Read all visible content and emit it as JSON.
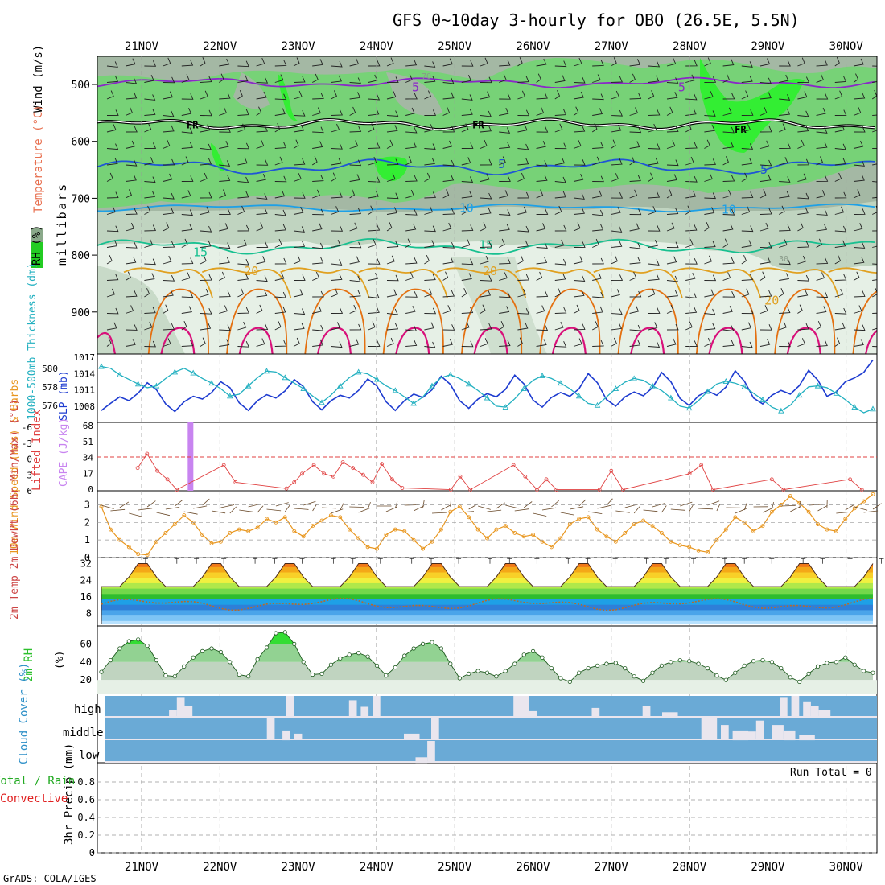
{
  "header": {
    "title": "GFS 0~10day 3-hourly for OBO (26.5E, 5.5N)",
    "credit": "GrADS: COLA/IGES"
  },
  "dates": [
    "21NOV",
    "22NOV",
    "23NOV",
    "24NOV",
    "25NOV",
    "26NOV",
    "27NOV",
    "28NOV",
    "29NOV",
    "30NOV"
  ],
  "colors": {
    "rh_light": "#e6f0e6",
    "rh_mid": "#c0d4c0",
    "rh_dark": "#a4b8a4",
    "rh_green": "#77d277",
    "rh_bright": "#33ee33",
    "temp_neg": "#8a28c8",
    "freezing": "#000000",
    "temp_5": "#1f55d6",
    "temp_10": "#1ea0e6",
    "temp_15": "#18c090",
    "temp_20": "#e0a020",
    "temp_25": "#e47010",
    "temp_30": "#d8107a",
    "slp": "#1e3cd0",
    "thickness": "#22b0c0",
    "cape": "#c884f0",
    "lifted": "#e04040",
    "wind": "#e8961e",
    "barb": "#6a4a2a",
    "rh2m": "#2cc02c",
    "cloud_bg": "#6aaad6",
    "cloud_bar": "#eae6ee",
    "precip_total": "#22aa22",
    "precip_conv": "#e02020"
  },
  "chart_data": [
    {
      "type": "heatmap",
      "title": "GFS 0~10day 3-hourly for OBO (26.5E, 5.5N)",
      "ylabel": "millibars",
      "side_labels": {
        "wind": "Wind (m/s)",
        "temp": "Temperature (°C)",
        "rh": "RH (%)"
      },
      "ylim": [
        1000,
        450
      ],
      "y_ticks": [
        500,
        600,
        700,
        800,
        900
      ],
      "rh_legend": [
        "30",
        "70"
      ],
      "isotherm_labels": [
        {
          "text": "5",
          "x_day": 3.5,
          "p": 505
        },
        {
          "text": "5",
          "x_day": 6.9,
          "p": 505
        },
        {
          "text": "FR",
          "x_day": 0.65,
          "p": 570
        },
        {
          "text": "FR",
          "x_day": 4.3,
          "p": 570
        },
        {
          "text": "FR",
          "x_day": 7.65,
          "p": 578
        },
        {
          "text": "5",
          "x_day": 4.6,
          "p": 640
        },
        {
          "text": "5",
          "x_day": 7.95,
          "p": 650
        },
        {
          "text": "10",
          "x_day": 4.15,
          "p": 717
        },
        {
          "text": "10",
          "x_day": 7.5,
          "p": 720
        },
        {
          "text": "15",
          "x_day": 0.75,
          "p": 795
        },
        {
          "text": "15",
          "x_day": 4.4,
          "p": 782
        },
        {
          "text": "20",
          "x_day": 1.4,
          "p": 828
        },
        {
          "text": "20",
          "x_day": 4.45,
          "p": 828
        },
        {
          "text": "20",
          "x_day": 8.05,
          "p": 880
        }
      ]
    },
    {
      "type": "line",
      "ylabel_left": "1000-500mb Thickness (dm)",
      "ylabel_right": "SLP (mb)",
      "thickness_ticks": [
        "580",
        "578",
        "576"
      ],
      "slp_ticks": [
        "1017",
        "1014",
        "1011",
        "1008"
      ],
      "thickness_range": [
        574.5,
        581.2
      ],
      "slp_range": [
        1005.6,
        1017
      ],
      "series": [
        {
          "name": "SLP",
          "unit": "mb",
          "x_step_hours": 3,
          "values": [
            1007.2,
            1008.5,
            1009.7,
            1009.0,
            1010.4,
            1012.3,
            1011.0,
            1008.4,
            1007.0,
            1008.8,
            1009.8,
            1009.3,
            1010.5,
            1012.5,
            1011.4,
            1008.6,
            1007.2,
            1009.0,
            1010.1,
            1009.5,
            1010.8,
            1012.9,
            1011.6,
            1008.8,
            1007.3,
            1009.0,
            1010.0,
            1009.5,
            1010.9,
            1013.0,
            1011.7,
            1008.8,
            1007.2,
            1009.0,
            1010.2,
            1009.6,
            1011.0,
            1013.5,
            1012.0,
            1009.0,
            1007.6,
            1009.3,
            1010.3,
            1009.7,
            1011.1,
            1013.7,
            1012.1,
            1009.1,
            1007.8,
            1009.6,
            1010.5,
            1009.8,
            1011.2,
            1014.0,
            1012.3,
            1009.2,
            1008.0,
            1009.7,
            1010.6,
            1009.9,
            1011.4,
            1014.2,
            1012.5,
            1009.4,
            1008.1,
            1009.9,
            1010.8,
            1010.0,
            1011.5,
            1014.5,
            1012.6,
            1009.5,
            1008.4,
            1010.0,
            1010.9,
            1010.2,
            1011.8,
            1014.6,
            1012.8,
            1009.8,
            1010.6,
            1012.5,
            1013.2,
            1014.2,
            1016.5
          ]
        },
        {
          "name": "Thickness",
          "unit": "dm",
          "x_step_hours": 3,
          "values": [
            580.2,
            580.0,
            579.3,
            578.8,
            578.3,
            577.9,
            578.1,
            578.9,
            579.6,
            580.0,
            579.5,
            578.9,
            578.4,
            577.8,
            577.0,
            577.2,
            578.1,
            579.0,
            579.7,
            579.6,
            579.0,
            578.4,
            577.8,
            577.0,
            576.3,
            577.1,
            578.1,
            579.0,
            579.6,
            579.4,
            578.8,
            578.1,
            577.6,
            576.9,
            576.2,
            576.9,
            578.1,
            579.0,
            579.3,
            578.9,
            578.3,
            577.6,
            576.8,
            575.9,
            575.8,
            576.7,
            577.8,
            578.7,
            579.2,
            578.9,
            578.4,
            577.8,
            577.0,
            576.2,
            576.0,
            576.9,
            577.8,
            578.5,
            578.9,
            578.7,
            578.1,
            577.6,
            576.8,
            575.9,
            575.7,
            576.5,
            577.5,
            578.3,
            578.6,
            578.4,
            578.0,
            577.3,
            576.6,
            575.8,
            575.4,
            576.0,
            577.1,
            578.0,
            578.1,
            577.9,
            577.3,
            576.6,
            575.8,
            575.2,
            575.6
          ]
        }
      ]
    },
    {
      "type": "bar",
      "ylabel_left": "Lifted Index",
      "ylabel_right": "CAPE (J/kg)",
      "li_ticks": [
        "-6",
        "-3",
        "0",
        "3",
        "6"
      ],
      "cape_ticks": [
        "68",
        "51",
        "34",
        "17",
        "0"
      ],
      "cape_bars": [
        {
          "day": 0.62,
          "value": 68
        }
      ],
      "lifted_index_points": [
        [
          0.5,
          2.0
        ],
        [
          0.62,
          -0.5
        ],
        [
          0.75,
          2.5
        ],
        [
          0.88,
          4.0
        ],
        [
          1.0,
          5.8
        ],
        [
          1.6,
          1.5
        ],
        [
          1.75,
          4.5
        ],
        [
          2.4,
          5.6
        ],
        [
          2.5,
          4.5
        ],
        [
          2.6,
          3.0
        ],
        [
          2.75,
          1.5
        ],
        [
          2.88,
          3.0
        ],
        [
          3.0,
          3.5
        ],
        [
          3.12,
          1.0
        ],
        [
          3.25,
          2.0
        ],
        [
          3.38,
          3.2
        ],
        [
          3.5,
          4.5
        ],
        [
          3.62,
          1.3
        ],
        [
          3.75,
          4.0
        ],
        [
          3.88,
          5.5
        ],
        [
          4.5,
          5.8
        ],
        [
          4.62,
          3.5
        ],
        [
          4.75,
          5.8
        ],
        [
          5.3,
          1.5
        ],
        [
          5.45,
          3.5
        ],
        [
          5.6,
          5.8
        ],
        [
          5.72,
          4.0
        ],
        [
          5.85,
          5.8
        ],
        [
          6.4,
          5.8
        ],
        [
          6.55,
          2.5
        ],
        [
          6.7,
          5.8
        ],
        [
          7.55,
          3.0
        ],
        [
          7.7,
          1.5
        ],
        [
          7.85,
          5.8
        ],
        [
          8.6,
          4.0
        ],
        [
          8.75,
          5.8
        ],
        [
          9.6,
          4.0
        ],
        [
          9.75,
          5.8
        ]
      ]
    },
    {
      "type": "line",
      "ylabel": "10m Wind Speed (m/s) & Barbs",
      "y_ticks": [
        "3",
        "2",
        "1",
        "0"
      ],
      "ylim": [
        0,
        3.8
      ],
      "x_step_hours": 3,
      "values": [
        2.9,
        1.6,
        1.0,
        0.6,
        0.2,
        0.15,
        0.9,
        1.4,
        1.9,
        2.4,
        2.0,
        1.3,
        0.8,
        0.9,
        1.4,
        1.6,
        1.5,
        1.7,
        2.2,
        2.0,
        2.3,
        1.5,
        1.2,
        1.8,
        2.1,
        2.4,
        2.3,
        1.6,
        1.1,
        0.6,
        0.5,
        1.3,
        1.6,
        1.5,
        1.0,
        0.5,
        0.9,
        1.6,
        2.6,
        2.9,
        2.3,
        1.6,
        1.1,
        1.6,
        1.8,
        1.4,
        1.2,
        1.3,
        0.9,
        0.6,
        1.1,
        1.9,
        2.2,
        2.3,
        1.6,
        1.2,
        0.9,
        1.4,
        1.9,
        2.1,
        1.8,
        1.4,
        0.9,
        0.7,
        0.6,
        0.4,
        0.3,
        1.0,
        1.6,
        2.3,
        2.0,
        1.5,
        1.8,
        2.6,
        3.0,
        3.5,
        3.1,
        2.6,
        1.9,
        1.6,
        1.5,
        2.2,
        2.8,
        3.2,
        3.6
      ]
    },
    {
      "type": "area",
      "ylabel": "2m Temp 2m DewPt (6hr Min/Max) (°C)",
      "y_ticks": [
        "32",
        "24",
        "16",
        "8"
      ],
      "ylim": [
        2,
        35
      ],
      "temp_min": 21,
      "temp_max": 33,
      "dewpoint_mean": 12.5,
      "band_colors": [
        "#b8e2ff",
        "#7dc4f5",
        "#4aa4ea",
        "#2e7fd8",
        "#1ea0e6",
        "#2ebd2e",
        "#73d84a",
        "#b0e84a",
        "#f0f040",
        "#f8d028",
        "#f4a818",
        "#f07818",
        "#e84818"
      ]
    },
    {
      "type": "area",
      "ylabel": "2m RH (%)",
      "y_ticks": [
        "60",
        "40",
        "20"
      ],
      "ylim": [
        5,
        80
      ],
      "x_step_hours": 3,
      "values": [
        29,
        42,
        55,
        63,
        65,
        58,
        42,
        25,
        24,
        35,
        45,
        52,
        55,
        51,
        40,
        26,
        24,
        43,
        56,
        72,
        73,
        60,
        40,
        26,
        27,
        37,
        44,
        48,
        50,
        46,
        36,
        25,
        34,
        47,
        55,
        60,
        62,
        55,
        38,
        22,
        27,
        30,
        28,
        24,
        30,
        38,
        48,
        52,
        45,
        33,
        22,
        18,
        28,
        33,
        36,
        38,
        39,
        33,
        24,
        19,
        28,
        36,
        40,
        42,
        41,
        38,
        33,
        25,
        20,
        28,
        36,
        41,
        42,
        40,
        33,
        23,
        18,
        27,
        35,
        39,
        40,
        45,
        37,
        30,
        28
      ]
    },
    {
      "type": "bar",
      "ylabel": "Cloud Cover (%)",
      "levels": [
        "high",
        "middle",
        "low"
      ],
      "level_bars": {
        "high": [
          [
            0.5,
            0.05,
            5
          ],
          [
            0.9,
            0.1,
            35
          ],
          [
            1.0,
            0.1,
            95
          ],
          [
            1.1,
            0.1,
            55
          ],
          [
            1.8,
            0.1,
            5
          ],
          [
            2.4,
            0.1,
            100
          ],
          [
            3.2,
            0.1,
            80
          ],
          [
            3.35,
            0.1,
            50
          ],
          [
            3.5,
            0.1,
            100
          ],
          [
            4.0,
            0.5,
            5
          ],
          [
            5.3,
            0.2,
            100
          ],
          [
            5.5,
            0.1,
            30
          ],
          [
            6.3,
            0.1,
            45
          ],
          [
            6.95,
            0.1,
            55
          ],
          [
            7.2,
            0.2,
            25
          ],
          [
            8.7,
            0.1,
            95
          ],
          [
            8.85,
            0.1,
            100
          ],
          [
            9.0,
            0.1,
            75
          ],
          [
            9.1,
            0.1,
            55
          ],
          [
            9.2,
            0.15,
            35
          ]
        ],
        "middle": [
          [
            2.15,
            0.1,
            100
          ],
          [
            2.35,
            0.1,
            45
          ],
          [
            2.5,
            0.1,
            30
          ],
          [
            3.9,
            0.2,
            30
          ],
          [
            4.25,
            0.1,
            100
          ],
          [
            6.5,
            0.5,
            5
          ],
          [
            7.7,
            0.2,
            100
          ],
          [
            7.95,
            0.1,
            70
          ],
          [
            8.1,
            0.2,
            45
          ],
          [
            8.25,
            0.15,
            40
          ],
          [
            8.4,
            0.1,
            90
          ],
          [
            8.6,
            0.15,
            70
          ],
          [
            8.75,
            0.15,
            45
          ],
          [
            8.95,
            0.2,
            25
          ]
        ],
        "low": [
          [
            4.05,
            0.15,
            25
          ],
          [
            4.2,
            0.1,
            100
          ]
        ]
      }
    },
    {
      "type": "line",
      "ylabel": "3hr Precip (mm)",
      "side_labels": {
        "total": "Total / Rain",
        "conv": "Convective"
      },
      "y_ticks": [
        "0.8",
        "0.6",
        "0.4",
        "0.2",
        "0"
      ],
      "ylim": [
        0,
        1.0
      ],
      "run_total": "Run Total = 0",
      "values": []
    }
  ]
}
